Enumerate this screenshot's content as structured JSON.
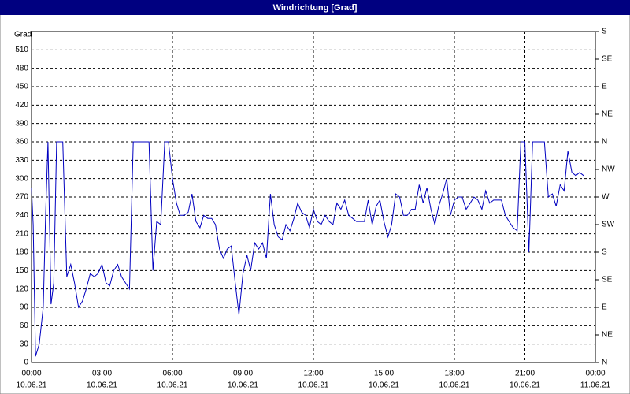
{
  "chart_data": {
    "type": "line",
    "title": "Windrichtung [Grad]",
    "ylabel": "Grad",
    "x": [
      0,
      0.07,
      0.17,
      0.33,
      0.5,
      0.6,
      0.7,
      0.83,
      0.95,
      1.07,
      1.2,
      1.33,
      1.5,
      1.67,
      1.83,
      2,
      2.17,
      2.33,
      2.5,
      2.67,
      2.83,
      3,
      3.17,
      3.33,
      3.5,
      3.67,
      3.83,
      4,
      4.17,
      4.33,
      4.5,
      4.67,
      4.83,
      5,
      5.17,
      5.33,
      5.5,
      5.67,
      5.83,
      6,
      6.17,
      6.33,
      6.5,
      6.67,
      6.83,
      7,
      7.17,
      7.33,
      7.5,
      7.67,
      7.83,
      8,
      8.17,
      8.33,
      8.5,
      8.67,
      8.83,
      9,
      9.17,
      9.33,
      9.5,
      9.67,
      9.83,
      10,
      10.17,
      10.33,
      10.5,
      10.67,
      10.83,
      11,
      11.17,
      11.33,
      11.5,
      11.67,
      11.83,
      12,
      12.17,
      12.33,
      12.5,
      12.67,
      12.83,
      13,
      13.17,
      13.33,
      13.5,
      13.67,
      13.83,
      14,
      14.17,
      14.33,
      14.5,
      14.67,
      14.83,
      15,
      15.17,
      15.33,
      15.5,
      15.67,
      15.83,
      16,
      16.17,
      16.33,
      16.5,
      16.67,
      16.83,
      17,
      17.17,
      17.33,
      17.5,
      17.67,
      17.83,
      18,
      18.17,
      18.33,
      18.5,
      18.67,
      18.83,
      19,
      19.17,
      19.33,
      19.5,
      19.67,
      19.83,
      20,
      20.17,
      20.33,
      20.5,
      20.67,
      20.83,
      21,
      21.17,
      21.33,
      21.5,
      21.67,
      21.83,
      22,
      22.17,
      22.33,
      22.5,
      22.67,
      22.83,
      23,
      23.17,
      23.33,
      23.5
    ],
    "series": [
      {
        "color": "#0000c0",
        "values": [
          285,
          225,
          10,
          30,
          90,
          240,
          360,
          95,
          130,
          360,
          360,
          360,
          140,
          160,
          130,
          90,
          100,
          120,
          145,
          140,
          145,
          160,
          130,
          125,
          150,
          160,
          140,
          130,
          120,
          360,
          360,
          360,
          360,
          360,
          150,
          230,
          225,
          360,
          360,
          300,
          260,
          240,
          240,
          245,
          275,
          230,
          220,
          240,
          235,
          235,
          225,
          185,
          170,
          185,
          190,
          130,
          78,
          145,
          175,
          150,
          195,
          185,
          195,
          170,
          275,
          225,
          205,
          200,
          225,
          215,
          235,
          260,
          245,
          240,
          220,
          250,
          230,
          225,
          240,
          230,
          225,
          260,
          250,
          265,
          240,
          235,
          230,
          230,
          230,
          265,
          225,
          255,
          265,
          230,
          205,
          225,
          275,
          270,
          240,
          240,
          250,
          250,
          290,
          260,
          285,
          250,
          225,
          255,
          275,
          300,
          240,
          265,
          270,
          270,
          250,
          260,
          270,
          265,
          250,
          280,
          260,
          265,
          265,
          265,
          240,
          230,
          220,
          215,
          360,
          360,
          180,
          360,
          360,
          360,
          360,
          270,
          275,
          255,
          290,
          280,
          345,
          310,
          305,
          310,
          305
        ]
      }
    ],
    "xlim": [
      0,
      24
    ],
    "xticks": [
      {
        "value": 0,
        "label": "00:00",
        "date": "10.06.21"
      },
      {
        "value": 3,
        "label": "03:00",
        "date": "10.06.21"
      },
      {
        "value": 6,
        "label": "06:00",
        "date": "10.06.21"
      },
      {
        "value": 9,
        "label": "09:00",
        "date": "10.06.21"
      },
      {
        "value": 12,
        "label": "12:00",
        "date": "10.06.21"
      },
      {
        "value": 15,
        "label": "15:00",
        "date": "10.06.21"
      },
      {
        "value": 18,
        "label": "18:00",
        "date": "10.06.21"
      },
      {
        "value": 21,
        "label": "21:00",
        "date": "10.06.21"
      },
      {
        "value": 24,
        "label": "00:00",
        "date": "11.06.21"
      }
    ],
    "ylim": [
      0,
      540
    ],
    "yticks": [
      0,
      30,
      60,
      90,
      120,
      150,
      180,
      210,
      240,
      270,
      300,
      330,
      360,
      390,
      420,
      450,
      480,
      510
    ],
    "y2lim": [
      0,
      540
    ],
    "y2ticks": [
      {
        "value": 0,
        "label": "N"
      },
      {
        "value": 45,
        "label": "NE"
      },
      {
        "value": 90,
        "label": "E"
      },
      {
        "value": 135,
        "label": "SE"
      },
      {
        "value": 180,
        "label": "S"
      },
      {
        "value": 225,
        "label": "SW"
      },
      {
        "value": 270,
        "label": "W"
      },
      {
        "value": 315,
        "label": "NW"
      },
      {
        "value": 360,
        "label": "N"
      },
      {
        "value": 405,
        "label": "NE"
      },
      {
        "value": 450,
        "label": "E"
      },
      {
        "value": 495,
        "label": "SE"
      },
      {
        "value": 540,
        "label": "S"
      }
    ],
    "grid": true
  }
}
